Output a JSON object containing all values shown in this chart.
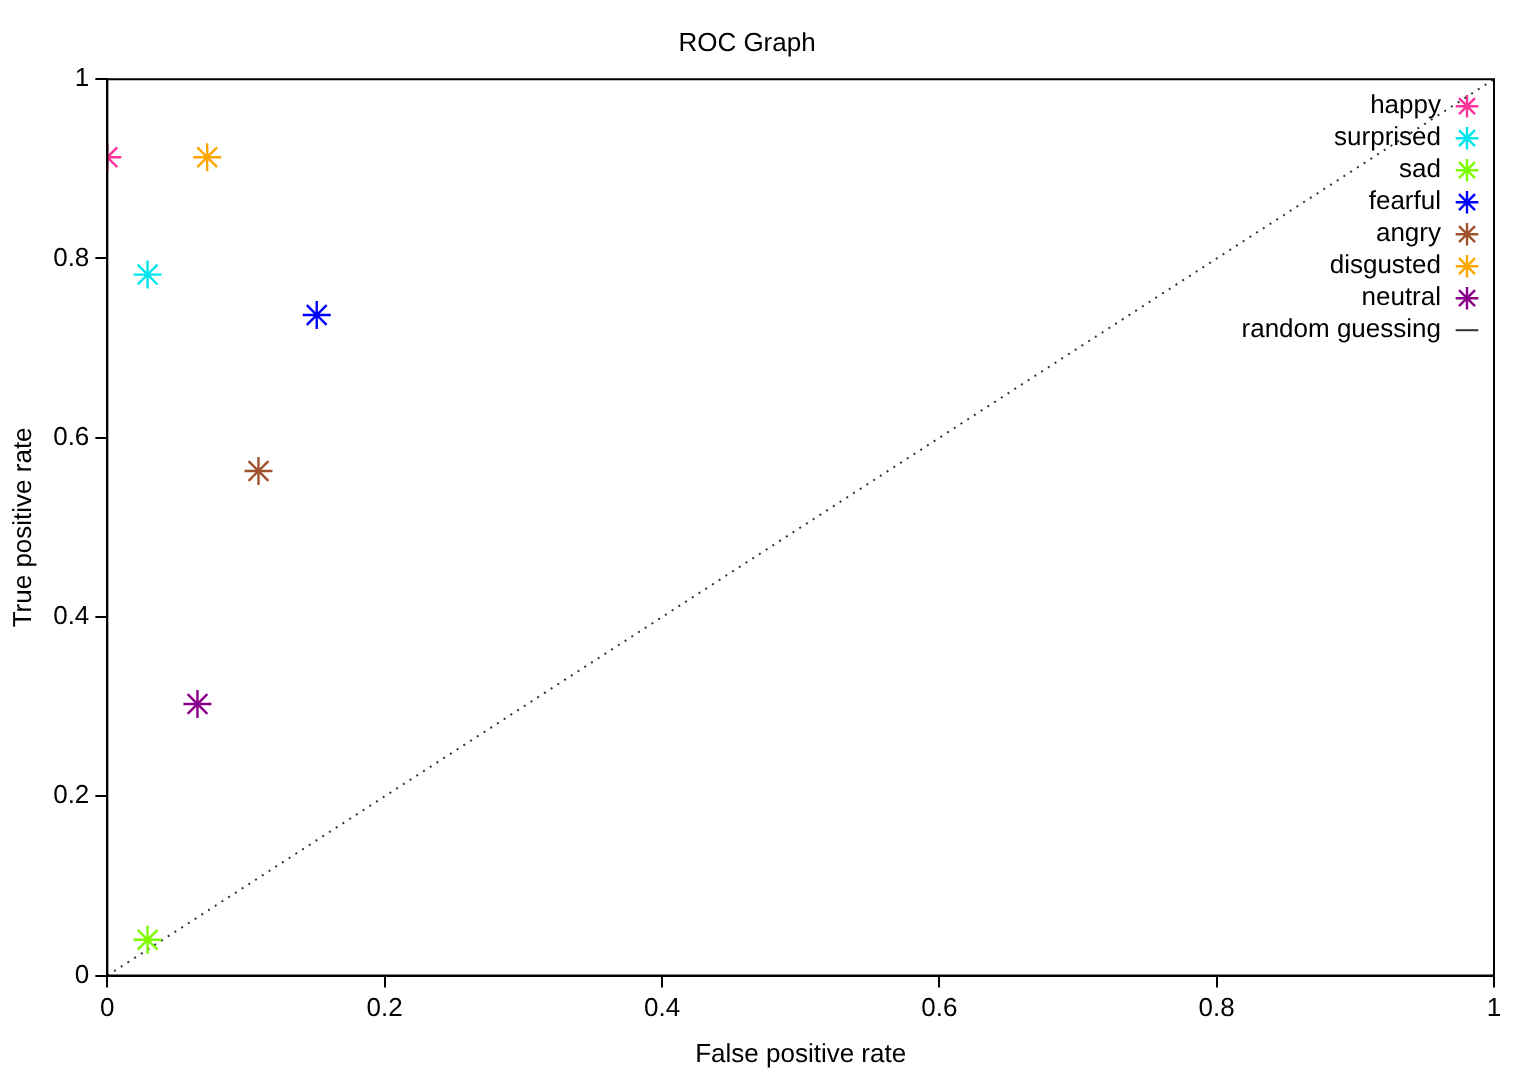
{
  "chart_data": {
    "type": "scatter",
    "title": "ROC Graph",
    "xlabel": "False positive rate",
    "ylabel": "True positive rate",
    "xlim": [
      0,
      1
    ],
    "ylim": [
      0,
      1
    ],
    "xticks": [
      0,
      0.2,
      0.4,
      0.6,
      0.8,
      1
    ],
    "yticks": [
      0,
      0.2,
      0.4,
      0.6,
      0.8,
      1
    ],
    "grid": false,
    "legend": "top right",
    "marker": "cross",
    "series": [
      {
        "name": "happy",
        "color": "#ff3399",
        "x": [
          0
        ],
        "values": [
          0.913
        ]
      },
      {
        "name": "surprised",
        "color": "#00e5ee",
        "x": [
          0.029
        ],
        "values": [
          0.782
        ]
      },
      {
        "name": "sad",
        "color": "#7cfc00",
        "x": [
          0.029
        ],
        "values": [
          0.04
        ]
      },
      {
        "name": "fearful",
        "color": "#0000ff",
        "x": [
          0.151
        ],
        "values": [
          0.737
        ]
      },
      {
        "name": "angry",
        "color": "#a0522d",
        "x": [
          0.109
        ],
        "values": [
          0.563
        ]
      },
      {
        "name": "disgusted",
        "color": "#ffa500",
        "x": [
          0.072
        ],
        "values": [
          0.913
        ]
      },
      {
        "name": "neutral",
        "color": "#8b008b",
        "x": [
          0.065
        ],
        "values": [
          0.303
        ]
      },
      {
        "name": "random guessing",
        "type": "line",
        "color": "#333333",
        "x": [
          0,
          1
        ],
        "values": [
          0,
          1
        ],
        "marker": "none",
        "line_style": "dotted"
      }
    ]
  }
}
